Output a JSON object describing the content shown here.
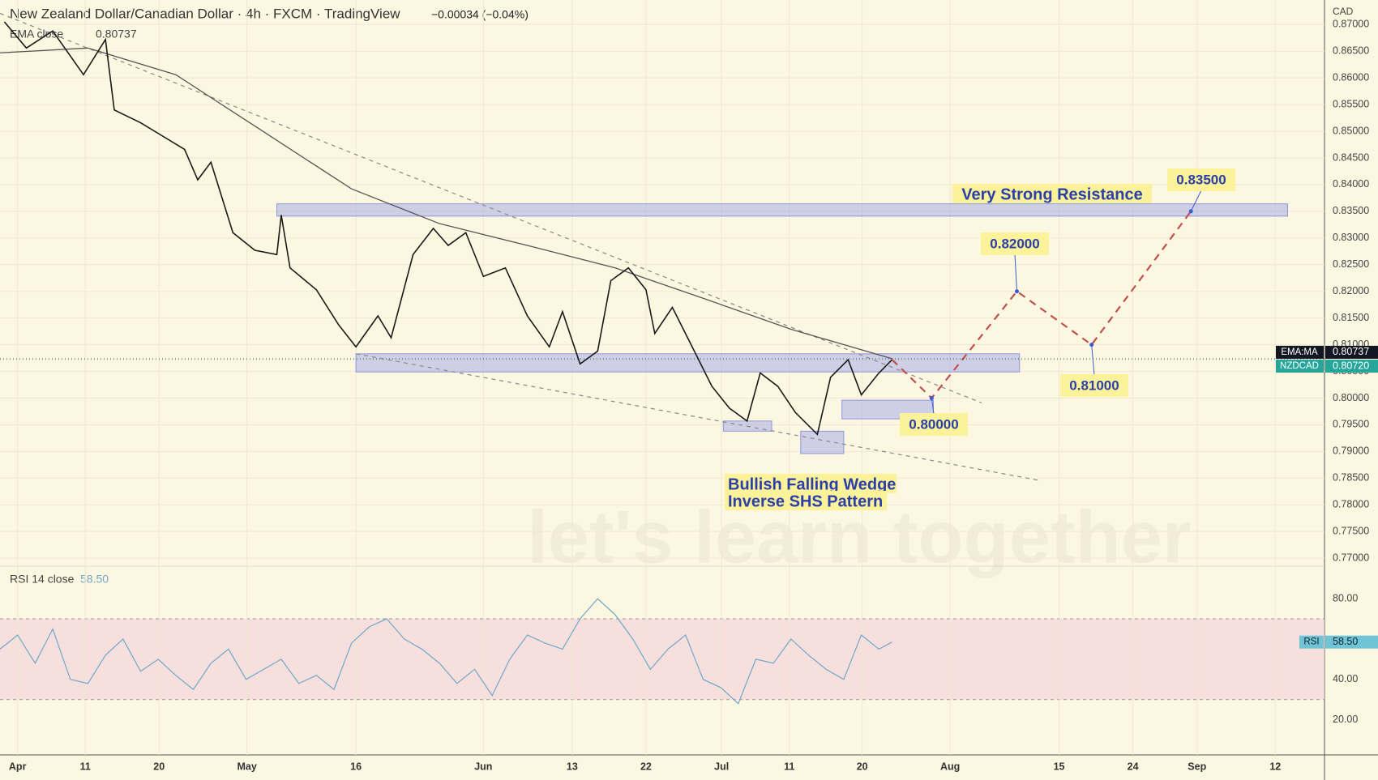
{
  "header": {
    "title": "New Zealand Dollar/Canadian Dollar · 4h · FXCM · TradingView",
    "change": "−0.00034 (−0.04%)",
    "ema_legend": "EMA close",
    "currency": "CAD"
  },
  "chart_data": [
    {
      "type": "line",
      "xlim": [
        0,
        150.7
      ],
      "ylim": [
        0.7685,
        0.8746
      ],
      "xticks": [
        {
          "value": 2,
          "label": "Apr"
        },
        {
          "value": 9.7,
          "label": "11"
        },
        {
          "value": 18.1,
          "label": "20"
        },
        {
          "value": 28.1,
          "label": "May"
        },
        {
          "value": 40.5,
          "label": "16"
        },
        {
          "value": 55,
          "label": "Jun"
        },
        {
          "value": 65.1,
          "label": "13"
        },
        {
          "value": 73.5,
          "label": "22"
        },
        {
          "value": 82.1,
          "label": "Jul"
        },
        {
          "value": 89.8,
          "label": "11"
        },
        {
          "value": 98.1,
          "label": "20"
        },
        {
          "value": 108.1,
          "label": "Aug"
        },
        {
          "value": 120.5,
          "label": "15"
        },
        {
          "value": 128.9,
          "label": "24"
        },
        {
          "value": 136.2,
          "label": "Sep"
        },
        {
          "value": 145.1,
          "label": "12"
        }
      ],
      "yticks": [
        {
          "value": 0.77,
          "label": "0.77000"
        },
        {
          "value": 0.775,
          "label": "0.77500"
        },
        {
          "value": 0.78,
          "label": "0.78000"
        },
        {
          "value": 0.785,
          "label": "0.78500"
        },
        {
          "value": 0.79,
          "label": "0.79000"
        },
        {
          "value": 0.795,
          "label": "0.79500"
        },
        {
          "value": 0.8,
          "label": "0.80000"
        },
        {
          "value": 0.805,
          "label": "0.80500"
        },
        {
          "value": 0.81,
          "label": "0.81000"
        },
        {
          "value": 0.815,
          "label": "0.81500"
        },
        {
          "value": 0.82,
          "label": "0.82000"
        },
        {
          "value": 0.825,
          "label": "0.82500"
        },
        {
          "value": 0.83,
          "label": "0.83000"
        },
        {
          "value": 0.835,
          "label": "0.83500"
        },
        {
          "value": 0.84,
          "label": "0.84000"
        },
        {
          "value": 0.845,
          "label": "0.84500"
        },
        {
          "value": 0.85,
          "label": "0.85000"
        },
        {
          "value": 0.855,
          "label": "0.85500"
        },
        {
          "value": 0.86,
          "label": "0.86000"
        },
        {
          "value": 0.865,
          "label": "0.86500"
        },
        {
          "value": 0.87,
          "label": "0.87000"
        }
      ],
      "grid": true,
      "series": [
        {
          "name": "NZDCAD",
          "color": "#1a1a1a",
          "x": [
            0.5,
            3,
            6,
            9.5,
            12,
            13,
            16,
            18.5,
            21,
            22.5,
            24,
            26.5,
            29,
            31.5,
            32,
            33,
            36,
            38.5,
            40.5,
            43,
            44.5,
            47,
            49.3,
            51,
            53,
            55,
            57.5,
            60,
            62.5,
            64,
            66,
            68,
            69.5,
            71.5,
            73.5,
            74.5,
            76.5,
            79,
            81,
            83,
            85,
            86.5,
            88.5,
            90.5,
            93,
            94.5,
            96.5,
            98,
            100,
            101.5
          ],
          "values": [
            0.8705,
            0.8656,
            0.8688,
            0.8606,
            0.8672,
            0.854,
            0.8516,
            0.8491,
            0.8466,
            0.8409,
            0.8442,
            0.831,
            0.8277,
            0.8269,
            0.8343,
            0.8244,
            0.8203,
            0.8138,
            0.8096,
            0.8154,
            0.8113,
            0.8269,
            0.8318,
            0.8286,
            0.831,
            0.8228,
            0.8244,
            0.8154,
            0.8096,
            0.8162,
            0.8064,
            0.8088,
            0.822,
            0.8244,
            0.8203,
            0.8121,
            0.817,
            0.8088,
            0.8022,
            0.7981,
            0.7957,
            0.8047,
            0.8022,
            0.7973,
            0.7932,
            0.8039,
            0.8072,
            0.8006,
            0.8047,
            0.8072
          ]
        },
        {
          "name": "EMA:MA",
          "color": "#555555",
          "x": [
            0,
            10,
            20,
            30,
            40,
            50,
            60,
            70,
            80,
            90,
            101.5
          ],
          "values": [
            0.8647,
            0.8656,
            0.8606,
            0.8499,
            0.8392,
            0.8327,
            0.8286,
            0.8244,
            0.8187,
            0.8129,
            0.80737
          ]
        },
        {
          "color": "#c0504d",
          "dashed": true,
          "x": [
            101.5,
            106,
            115.7,
            124.2,
            135.5
          ],
          "values": [
            0.8072,
            0.8,
            0.82,
            0.81,
            0.835
          ],
          "value_labels": [
            null,
            "0.80000",
            "0.82000",
            "0.81000",
            "0.83500"
          ]
        }
      ],
      "trendlines": [
        {
          "x": [
            0,
            111.7
          ],
          "values": [
            0.8721,
            0.7991
          ]
        },
        {
          "x": [
            40.5,
            118.5
          ],
          "values": [
            0.8083,
            0.7845
          ]
        }
      ],
      "zones": [
        {
          "x": [
            31.5,
            146.5
          ],
          "values": [
            0.8341,
            0.8364
          ]
        },
        {
          "x": [
            40.5,
            116
          ],
          "values": [
            0.8049,
            0.8083
          ]
        },
        {
          "x": [
            82.3,
            87.8
          ],
          "values": [
            0.7938,
            0.7957
          ]
        },
        {
          "x": [
            91.1,
            96
          ],
          "values": [
            0.7896,
            0.7938
          ]
        },
        {
          "x": [
            95.8,
            106.2
          ],
          "values": [
            0.7961,
            0.7996
          ]
        }
      ],
      "tags": [
        {
          "name": "EMA:MA",
          "value": 0.80737,
          "label": "0.80737",
          "color": "#131722"
        },
        {
          "name": "NZDCAD",
          "value": 0.8072,
          "label": "0.80720",
          "color": "#26a69a"
        }
      ],
      "annotations": [
        "Very Strong Resistance",
        "Bullish Falling Wedge",
        "Inverse SHS Pattern",
        "let's learn together"
      ]
    },
    {
      "type": "line",
      "title": "RSI 14 close",
      "xlim": [
        0,
        150.7
      ],
      "ylim": [
        2.6,
        96.1
      ],
      "yticks": [
        {
          "value": 20,
          "label": "20.00"
        },
        {
          "value": 40,
          "label": "40.00"
        },
        {
          "value": 80,
          "label": "80.00"
        }
      ],
      "band": [
        30,
        70
      ],
      "series": [
        {
          "name": "RSI",
          "color": "#6fa8c9",
          "x": [
            0,
            2,
            4,
            6,
            8,
            10,
            12,
            14,
            16,
            18,
            20,
            22,
            24,
            26,
            28,
            30,
            32,
            34,
            36,
            38,
            40,
            42,
            44,
            46,
            48,
            50,
            52,
            54,
            56,
            58,
            60,
            62,
            64,
            66,
            68,
            70,
            72,
            74,
            76,
            78,
            80,
            82,
            84,
            86,
            88,
            90,
            92,
            94,
            96,
            98,
            100,
            101.5
          ],
          "values": [
            55,
            62,
            48,
            65,
            40,
            38,
            52,
            60,
            44,
            50,
            42,
            35,
            48,
            55,
            40,
            45,
            50,
            38,
            42,
            35,
            58,
            66,
            70,
            60,
            55,
            48,
            38,
            45,
            32,
            50,
            62,
            58,
            55,
            70,
            80,
            72,
            60,
            45,
            55,
            62,
            40,
            36,
            28,
            50,
            48,
            60,
            52,
            45,
            40,
            62,
            55,
            58.5
          ]
        }
      ],
      "tag": {
        "name": "RSI",
        "value": 58.5,
        "label": "58.50"
      }
    }
  ]
}
